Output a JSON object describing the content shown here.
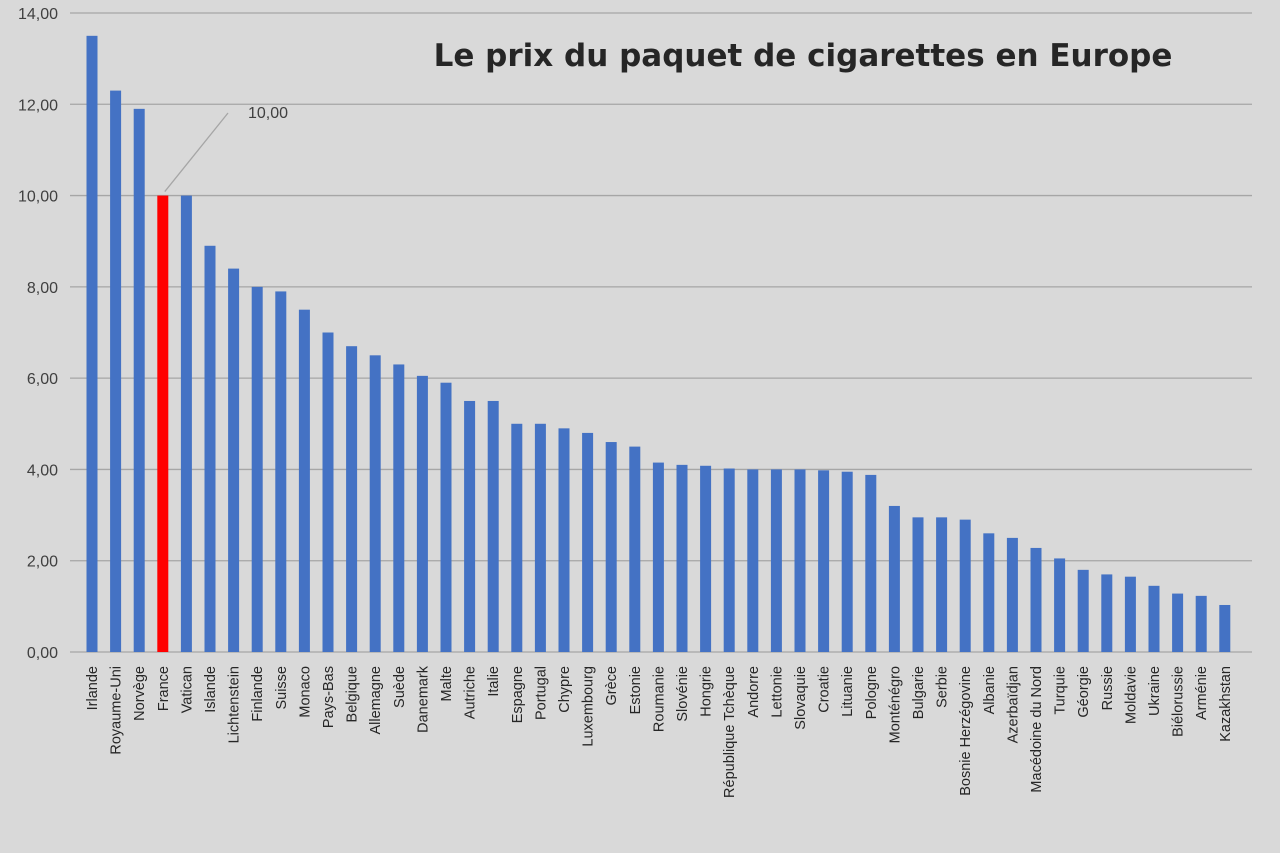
{
  "chart_data": {
    "type": "bar",
    "title": "Le prix du paquet de cigarettes en Europe",
    "xlabel": "",
    "ylabel": "",
    "ylim": [
      0,
      14
    ],
    "yticks": [
      "0,00",
      "2,00",
      "4,00",
      "6,00",
      "8,00",
      "10,00",
      "12,00",
      "14,00"
    ],
    "grid": true,
    "bar_color": "#4472c4",
    "highlight_color": "#ff0000",
    "highlight_category": "France",
    "annotation": {
      "category": "France",
      "text": "10,00"
    },
    "categories": [
      "Irlande",
      "Royaume-Uni",
      "Norvège",
      "France",
      "Vatican",
      "Islande",
      "Lichtenstein",
      "Finlande",
      "Suisse",
      "Monaco",
      "Pays-Bas",
      "Belgique",
      "Allemagne",
      "Suède",
      "Danemark",
      "Malte",
      "Autriche",
      "Italie",
      "Espagne",
      "Portugal",
      "Chypre",
      "Luxembourg",
      "Grèce",
      "Estonie",
      "Roumanie",
      "Slovénie",
      "Hongrie",
      "République Tchèque",
      "Andorre",
      "Lettonie",
      "Slovaquie",
      "Croatie",
      "Lituanie",
      "Pologne",
      "Monténégro",
      "Bulgarie",
      "Serbie",
      "Bosnie Herzégovine",
      "Albanie",
      "Azerbaïdjan",
      "Macédoine du Nord",
      "Turquie",
      "Géorgie",
      "Russie",
      "Moldavie",
      "Ukraine",
      "Biélorussie",
      "Arménie",
      "Kazakhstan"
    ],
    "values": [
      13.5,
      12.3,
      11.9,
      10.0,
      10.0,
      8.9,
      8.4,
      8.0,
      7.9,
      7.5,
      7.0,
      6.7,
      6.5,
      6.3,
      6.05,
      5.9,
      5.5,
      5.5,
      5.0,
      5.0,
      4.9,
      4.8,
      4.6,
      4.5,
      4.15,
      4.1,
      4.08,
      4.02,
      4.0,
      4.0,
      4.0,
      3.98,
      3.95,
      3.88,
      3.2,
      2.95,
      2.95,
      2.9,
      2.6,
      2.5,
      2.28,
      2.05,
      1.8,
      1.7,
      1.65,
      1.45,
      1.28,
      1.23,
      1.03
    ]
  }
}
